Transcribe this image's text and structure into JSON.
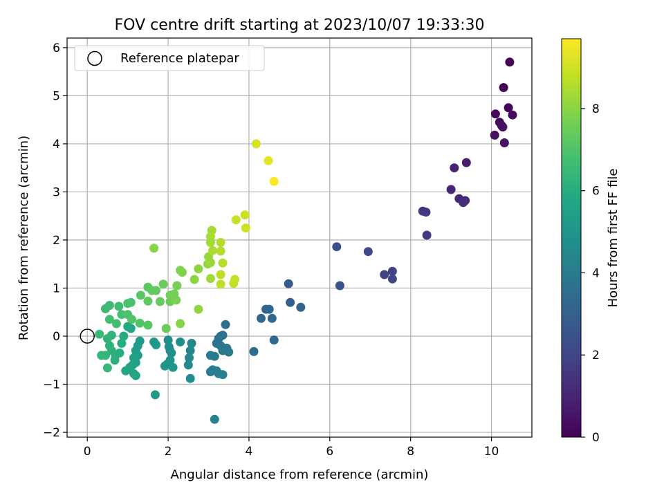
{
  "chart_data": {
    "type": "scatter",
    "title": "FOV centre drift starting at 2023/10/07 19:33:30",
    "xlabel": "Angular distance from reference (arcmin)",
    "ylabel": "Rotation from reference (arcmin)",
    "xlim": [
      -0.5,
      11.0
    ],
    "ylim": [
      -2.1,
      6.2
    ],
    "xticks": [
      0,
      2,
      4,
      6,
      8,
      10
    ],
    "yticks": [
      -2,
      -1,
      0,
      1,
      2,
      3,
      4,
      5,
      6
    ],
    "grid": true,
    "legend": {
      "position": "top-left",
      "entries": [
        "Reference platepar"
      ]
    },
    "reference": {
      "x": 0,
      "y": 0
    },
    "colorbar": {
      "label": "Hours from first FF file",
      "min": 0,
      "max": 9.7,
      "ticks": [
        0,
        2,
        4,
        6,
        8
      ],
      "colormap": "viridis"
    },
    "points": [
      {
        "x": 10.45,
        "y": 5.7,
        "h": 0.05
      },
      {
        "x": 10.3,
        "y": 5.17,
        "h": 0.1
      },
      {
        "x": 10.42,
        "y": 4.75,
        "h": 0.15
      },
      {
        "x": 10.1,
        "y": 4.62,
        "h": 0.2
      },
      {
        "x": 10.52,
        "y": 4.6,
        "h": 0.25
      },
      {
        "x": 10.2,
        "y": 4.45,
        "h": 0.3
      },
      {
        "x": 10.25,
        "y": 4.38,
        "h": 0.35
      },
      {
        "x": 10.28,
        "y": 4.35,
        "h": 0.4
      },
      {
        "x": 10.08,
        "y": 4.18,
        "h": 0.45
      },
      {
        "x": 10.32,
        "y": 4.02,
        "h": 0.5
      },
      {
        "x": 9.38,
        "y": 3.61,
        "h": 0.8
      },
      {
        "x": 9.08,
        "y": 3.5,
        "h": 0.9
      },
      {
        "x": 9.0,
        "y": 3.05,
        "h": 1.0
      },
      {
        "x": 9.2,
        "y": 2.86,
        "h": 1.1
      },
      {
        "x": 9.35,
        "y": 2.82,
        "h": 1.15
      },
      {
        "x": 9.3,
        "y": 2.78,
        "h": 1.2
      },
      {
        "x": 8.3,
        "y": 2.6,
        "h": 1.5
      },
      {
        "x": 8.38,
        "y": 2.58,
        "h": 1.55
      },
      {
        "x": 8.4,
        "y": 2.1,
        "h": 1.6
      },
      {
        "x": 7.55,
        "y": 1.35,
        "h": 1.9
      },
      {
        "x": 7.35,
        "y": 1.28,
        "h": 1.95
      },
      {
        "x": 7.55,
        "y": 1.19,
        "h": 2.0
      },
      {
        "x": 6.95,
        "y": 1.76,
        "h": 2.1
      },
      {
        "x": 6.17,
        "y": 1.86,
        "h": 2.3
      },
      {
        "x": 6.25,
        "y": 1.05,
        "h": 2.5
      },
      {
        "x": 4.98,
        "y": 1.09,
        "h": 2.8
      },
      {
        "x": 5.02,
        "y": 0.7,
        "h": 2.9
      },
      {
        "x": 5.28,
        "y": 0.6,
        "h": 3.0
      },
      {
        "x": 4.42,
        "y": 0.56,
        "h": 3.1
      },
      {
        "x": 4.5,
        "y": 0.56,
        "h": 3.15
      },
      {
        "x": 4.3,
        "y": 0.37,
        "h": 3.2
      },
      {
        "x": 4.57,
        "y": 0.37,
        "h": 3.25
      },
      {
        "x": 4.62,
        "y": -0.08,
        "h": 3.3
      },
      {
        "x": 4.12,
        "y": -0.32,
        "h": 3.35
      },
      {
        "x": 3.42,
        "y": 0.24,
        "h": 3.5
      },
      {
        "x": 3.3,
        "y": 0.0,
        "h": 3.55
      },
      {
        "x": 3.35,
        "y": 0.02,
        "h": 3.6
      },
      {
        "x": 3.25,
        "y": -0.05,
        "h": 3.65
      },
      {
        "x": 3.2,
        "y": -0.15,
        "h": 3.7
      },
      {
        "x": 3.3,
        "y": -0.2,
        "h": 3.75
      },
      {
        "x": 3.45,
        "y": -0.25,
        "h": 3.8
      },
      {
        "x": 3.35,
        "y": -0.3,
        "h": 3.85
      },
      {
        "x": 3.5,
        "y": -0.33,
        "h": 3.9
      },
      {
        "x": 3.05,
        "y": -0.4,
        "h": 3.95
      },
      {
        "x": 3.15,
        "y": -0.42,
        "h": 4.0
      },
      {
        "x": 3.1,
        "y": -0.7,
        "h": 4.05
      },
      {
        "x": 3.05,
        "y": -0.74,
        "h": 4.1
      },
      {
        "x": 3.2,
        "y": -0.72,
        "h": 4.15
      },
      {
        "x": 3.25,
        "y": -0.78,
        "h": 4.2
      },
      {
        "x": 3.35,
        "y": -0.8,
        "h": 4.25
      },
      {
        "x": 3.15,
        "y": -1.73,
        "h": 4.3
      },
      {
        "x": 2.58,
        "y": -0.15,
        "h": 4.4
      },
      {
        "x": 2.55,
        "y": -0.3,
        "h": 4.45
      },
      {
        "x": 2.52,
        "y": -0.45,
        "h": 4.5
      },
      {
        "x": 2.5,
        "y": -0.6,
        "h": 4.55
      },
      {
        "x": 2.55,
        "y": -0.88,
        "h": 4.6
      },
      {
        "x": 2.3,
        "y": -0.12,
        "h": 4.65
      },
      {
        "x": 2.0,
        "y": -0.08,
        "h": 4.7
      },
      {
        "x": 2.02,
        "y": -0.22,
        "h": 4.75
      },
      {
        "x": 2.05,
        "y": -0.3,
        "h": 4.8
      },
      {
        "x": 2.08,
        "y": -0.35,
        "h": 4.85
      },
      {
        "x": 2.05,
        "y": -0.5,
        "h": 4.9
      },
      {
        "x": 1.98,
        "y": -0.58,
        "h": 4.95
      },
      {
        "x": 1.92,
        "y": -0.62,
        "h": 5.0
      },
      {
        "x": 2.12,
        "y": -0.65,
        "h": 5.05
      },
      {
        "x": 1.65,
        "y": -0.12,
        "h": 5.1
      },
      {
        "x": 1.7,
        "y": -0.18,
        "h": 5.15
      },
      {
        "x": 1.68,
        "y": -1.22,
        "h": 5.2
      },
      {
        "x": 1.3,
        "y": -0.1,
        "h": 5.25
      },
      {
        "x": 1.25,
        "y": -0.2,
        "h": 5.3
      },
      {
        "x": 1.2,
        "y": -0.3,
        "h": 5.35
      },
      {
        "x": 1.25,
        "y": -0.4,
        "h": 5.4
      },
      {
        "x": 1.15,
        "y": -0.45,
        "h": 5.45
      },
      {
        "x": 1.2,
        "y": -0.55,
        "h": 5.5
      },
      {
        "x": 1.12,
        "y": -0.6,
        "h": 5.55
      },
      {
        "x": 1.05,
        "y": -0.65,
        "h": 5.6
      },
      {
        "x": 0.95,
        "y": -0.72,
        "h": 5.65
      },
      {
        "x": 1.15,
        "y": -0.78,
        "h": 5.7
      },
      {
        "x": 1.2,
        "y": -0.82,
        "h": 5.75
      },
      {
        "x": 1.08,
        "y": 0.16,
        "h": 5.8
      },
      {
        "x": 1.0,
        "y": 0.2,
        "h": 5.85
      },
      {
        "x": 0.9,
        "y": 0.0,
        "h": 5.9
      },
      {
        "x": 0.85,
        "y": -0.15,
        "h": 5.95
      },
      {
        "x": 0.8,
        "y": -0.35,
        "h": 6.0
      },
      {
        "x": 0.7,
        "y": -0.4,
        "h": 6.05
      },
      {
        "x": 0.68,
        "y": -0.5,
        "h": 6.1
      },
      {
        "x": 0.6,
        "y": -0.3,
        "h": 6.15
      },
      {
        "x": 0.55,
        "y": -0.2,
        "h": 6.2
      },
      {
        "x": 0.5,
        "y": -0.05,
        "h": 6.25
      },
      {
        "x": 0.6,
        "y": 0.02,
        "h": 6.3
      },
      {
        "x": 0.45,
        "y": -0.4,
        "h": 6.35
      },
      {
        "x": 0.35,
        "y": -0.4,
        "h": 6.4
      },
      {
        "x": 0.5,
        "y": -0.66,
        "h": 6.45
      },
      {
        "x": 0.3,
        "y": 0.04,
        "h": 6.5
      },
      {
        "x": 0.45,
        "y": 0.57,
        "h": 6.55
      },
      {
        "x": 0.55,
        "y": 0.64,
        "h": 6.6
      },
      {
        "x": 0.78,
        "y": 0.62,
        "h": 6.65
      },
      {
        "x": 0.55,
        "y": 0.35,
        "h": 6.7
      },
      {
        "x": 0.72,
        "y": 0.26,
        "h": 6.75
      },
      {
        "x": 0.85,
        "y": 0.45,
        "h": 6.8
      },
      {
        "x": 1.0,
        "y": 0.68,
        "h": 6.85
      },
      {
        "x": 1.08,
        "y": 0.7,
        "h": 6.9
      },
      {
        "x": 1.0,
        "y": 0.45,
        "h": 6.95
      },
      {
        "x": 1.1,
        "y": 0.35,
        "h": 7.0
      },
      {
        "x": 1.3,
        "y": 0.27,
        "h": 7.05
      },
      {
        "x": 1.5,
        "y": 0.23,
        "h": 7.1
      },
      {
        "x": 1.32,
        "y": 0.85,
        "h": 7.15
      },
      {
        "x": 1.5,
        "y": 1.02,
        "h": 7.2
      },
      {
        "x": 1.6,
        "y": 0.95,
        "h": 7.25
      },
      {
        "x": 1.5,
        "y": 0.73,
        "h": 7.3
      },
      {
        "x": 1.7,
        "y": 0.95,
        "h": 7.35
      },
      {
        "x": 1.8,
        "y": 0.72,
        "h": 7.4
      },
      {
        "x": 1.88,
        "y": 1.08,
        "h": 7.45
      },
      {
        "x": 1.95,
        "y": 0.16,
        "h": 7.5
      },
      {
        "x": 2.05,
        "y": 0.72,
        "h": 7.55
      },
      {
        "x": 2.05,
        "y": 0.85,
        "h": 7.6
      },
      {
        "x": 2.15,
        "y": 0.88,
        "h": 7.65
      },
      {
        "x": 2.22,
        "y": 1.05,
        "h": 7.7
      },
      {
        "x": 2.2,
        "y": 0.75,
        "h": 7.75
      },
      {
        "x": 2.3,
        "y": 1.37,
        "h": 7.8
      },
      {
        "x": 2.35,
        "y": 1.33,
        "h": 7.85
      },
      {
        "x": 2.3,
        "y": 0.26,
        "h": 7.9
      },
      {
        "x": 1.65,
        "y": 1.83,
        "h": 7.95
      },
      {
        "x": 2.65,
        "y": 1.18,
        "h": 8.0
      },
      {
        "x": 2.75,
        "y": 1.4,
        "h": 8.05
      },
      {
        "x": 2.75,
        "y": 0.56,
        "h": 8.1
      },
      {
        "x": 2.98,
        "y": 1.5,
        "h": 8.15
      },
      {
        "x": 3.0,
        "y": 1.65,
        "h": 8.2
      },
      {
        "x": 3.05,
        "y": 1.53,
        "h": 8.25
      },
      {
        "x": 3.05,
        "y": 1.2,
        "h": 8.3
      },
      {
        "x": 3.05,
        "y": 1.95,
        "h": 8.35
      },
      {
        "x": 3.08,
        "y": 2.2,
        "h": 8.4
      },
      {
        "x": 3.05,
        "y": 2.07,
        "h": 8.45
      },
      {
        "x": 3.1,
        "y": 1.78,
        "h": 8.5
      },
      {
        "x": 3.3,
        "y": 1.77,
        "h": 8.55
      },
      {
        "x": 3.3,
        "y": 1.95,
        "h": 8.6
      },
      {
        "x": 3.35,
        "y": 1.52,
        "h": 8.65
      },
      {
        "x": 3.3,
        "y": 1.28,
        "h": 8.7
      },
      {
        "x": 3.3,
        "y": 1.08,
        "h": 8.75
      },
      {
        "x": 3.62,
        "y": 1.1,
        "h": 8.8
      },
      {
        "x": 3.65,
        "y": 1.18,
        "h": 8.85
      },
      {
        "x": 3.68,
        "y": 2.42,
        "h": 8.9
      },
      {
        "x": 3.9,
        "y": 2.52,
        "h": 8.95
      },
      {
        "x": 3.92,
        "y": 2.25,
        "h": 9.0
      },
      {
        "x": 4.18,
        "y": 4.0,
        "h": 9.1
      },
      {
        "x": 4.48,
        "y": 3.65,
        "h": 9.3
      },
      {
        "x": 4.62,
        "y": 3.22,
        "h": 9.7
      }
    ]
  }
}
